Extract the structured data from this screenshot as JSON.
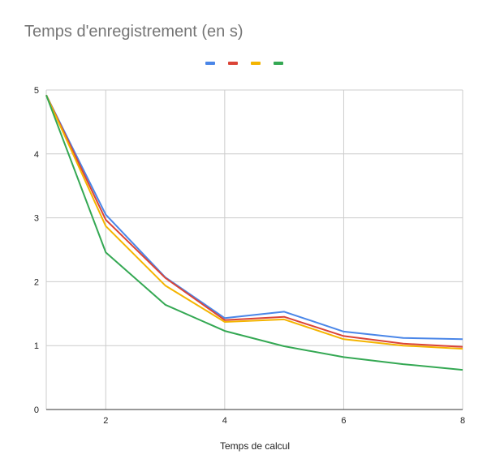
{
  "chart_data": {
    "type": "line",
    "title": "Temps d'enregistrement (en s)",
    "xlabel": "Temps de calcul",
    "ylabel": "",
    "xlim": [
      1,
      8
    ],
    "ylim": [
      0,
      5
    ],
    "x_ticks": [
      2,
      4,
      6,
      8
    ],
    "y_ticks": [
      0,
      1,
      2,
      3,
      4,
      5
    ],
    "grid": true,
    "legend": "top",
    "x": [
      1,
      2,
      3,
      4,
      5,
      6,
      7,
      8
    ],
    "series": [
      {
        "name": "",
        "color": "#4a86e8",
        "values": [
          4.92,
          3.05,
          2.07,
          1.43,
          1.53,
          1.22,
          1.12,
          1.1
        ]
      },
      {
        "name": "",
        "color": "#db4437",
        "values": [
          4.92,
          2.97,
          2.06,
          1.4,
          1.45,
          1.15,
          1.03,
          0.98
        ]
      },
      {
        "name": "",
        "color": "#f4b400",
        "values": [
          4.92,
          2.87,
          1.94,
          1.37,
          1.41,
          1.1,
          1.0,
          0.95
        ]
      },
      {
        "name": "",
        "color": "#34a853",
        "values": [
          4.92,
          2.46,
          1.64,
          1.23,
          0.99,
          0.82,
          0.71,
          0.62
        ]
      }
    ]
  }
}
